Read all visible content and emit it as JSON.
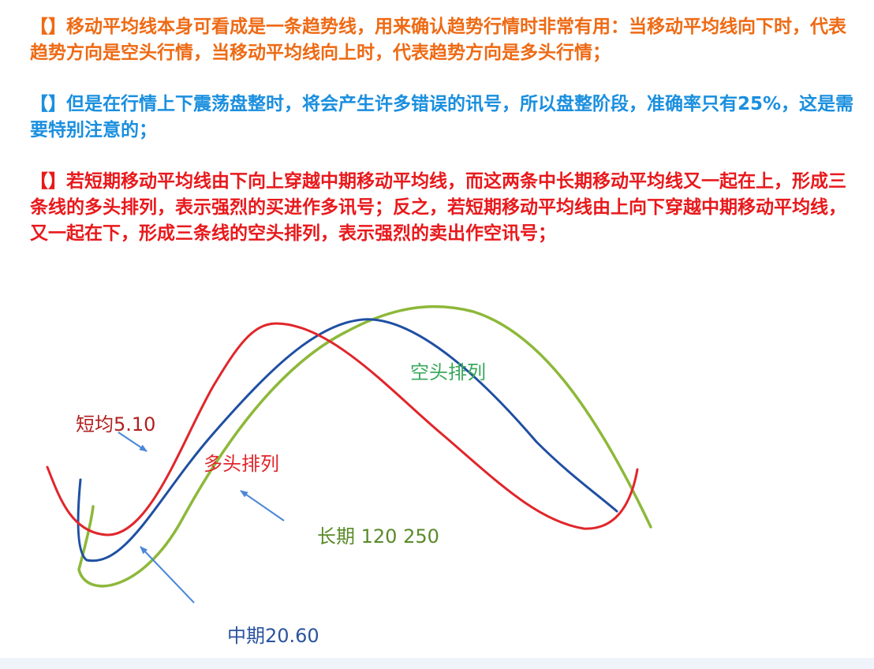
{
  "paragraphs": [
    {
      "bracket": "【】",
      "text": "移动平均线本身可看成是一条趋势线，用来确认趋势行情时非常有用：当移动平均线向下时，代表趋势方向是空头行情，当移动平均线向上时，代表趋势方向是多头行情；"
    },
    {
      "bracket": "【】",
      "text": "但是在行情上下震荡盘整时，将会产生许多错误的讯号，所以盘整阶段，准确率只有25%，这是需要特别注意的；"
    },
    {
      "bracket": "【】",
      "text": "若短期移动平均线由下向上穿越中期移动平均线，而这两条中长期移动平均线又一起在上，形成三条线的多头排列，表示强烈的买进作多讯号；反之，若短期移动平均线由上向下穿越中期移动平均线，又一起在下，形成三条线的空头排列，表示强烈的卖出作空讯号；"
    }
  ],
  "diagram": {
    "labels": {
      "short_ma": "短均5.10",
      "mid_ma": "中期20.60",
      "long_ma": "长期 120 250",
      "bull": "多头排列",
      "bear": "空头排列"
    },
    "colors": {
      "short": "#e0262b",
      "mid": "#1f4fa3",
      "long": "#8db83a",
      "arrow": "#4a86d8",
      "bull_text": "#e0262b",
      "bear_text": "#3aa85c",
      "short_text": "#b02020",
      "mid_text": "#2b54a0",
      "long_text": "#5a8a2a"
    }
  }
}
